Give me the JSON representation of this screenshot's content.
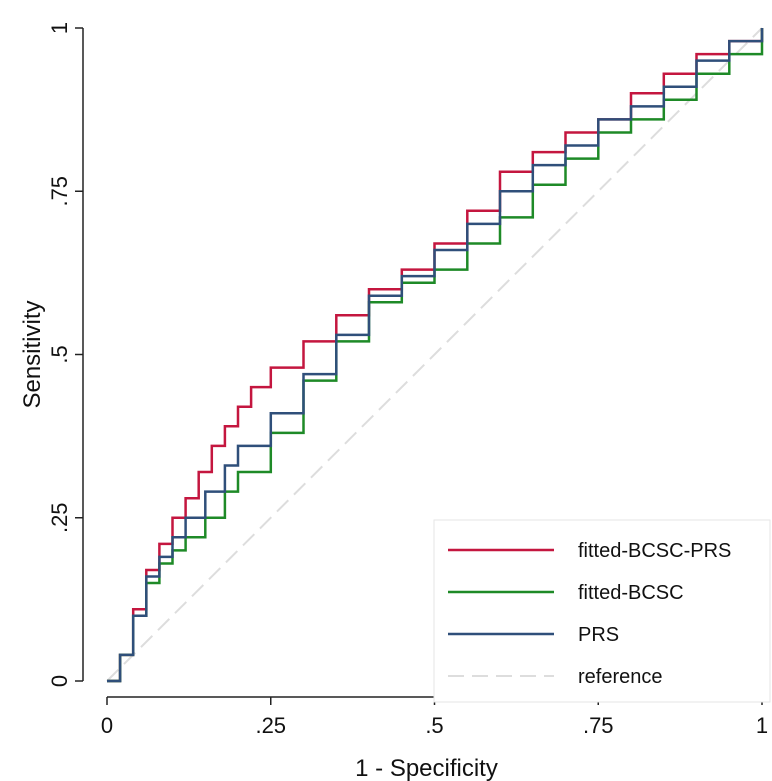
{
  "chart_data": {
    "type": "line",
    "title": "",
    "xlabel": "1 - Specificity",
    "ylabel": "Sensitivity",
    "xlim": [
      0,
      1
    ],
    "ylim": [
      0,
      1
    ],
    "x_ticks": [
      {
        "value": 0,
        "label": "0"
      },
      {
        "value": 0.25,
        "label": ".25"
      },
      {
        "value": 0.5,
        "label": ".5"
      },
      {
        "value": 0.75,
        "label": ".75"
      },
      {
        "value": 1,
        "label": "1"
      }
    ],
    "y_ticks": [
      {
        "value": 0,
        "label": "0"
      },
      {
        "value": 0.25,
        "label": ".25"
      },
      {
        "value": 0.5,
        "label": ".5"
      },
      {
        "value": 0.75,
        "label": ".75"
      },
      {
        "value": 1,
        "label": "1"
      }
    ],
    "grid": false,
    "legend_position": "bottom-right",
    "series": [
      {
        "name": "fitted-BCSC-PRS",
        "color": "#c4163f",
        "dash": "solid",
        "points": [
          [
            0,
            0
          ],
          [
            0.02,
            0.04
          ],
          [
            0.04,
            0.11
          ],
          [
            0.06,
            0.17
          ],
          [
            0.08,
            0.21
          ],
          [
            0.1,
            0.25
          ],
          [
            0.12,
            0.28
          ],
          [
            0.14,
            0.32
          ],
          [
            0.16,
            0.36
          ],
          [
            0.18,
            0.39
          ],
          [
            0.2,
            0.42
          ],
          [
            0.22,
            0.45
          ],
          [
            0.25,
            0.48
          ],
          [
            0.3,
            0.52
          ],
          [
            0.35,
            0.56
          ],
          [
            0.4,
            0.6
          ],
          [
            0.45,
            0.63
          ],
          [
            0.5,
            0.67
          ],
          [
            0.55,
            0.72
          ],
          [
            0.6,
            0.78
          ],
          [
            0.65,
            0.81
          ],
          [
            0.7,
            0.84
          ],
          [
            0.75,
            0.86
          ],
          [
            0.8,
            0.9
          ],
          [
            0.85,
            0.93
          ],
          [
            0.9,
            0.96
          ],
          [
            0.95,
            0.98
          ],
          [
            1,
            1
          ]
        ]
      },
      {
        "name": "fitted-BCSC",
        "color": "#1e8a27",
        "dash": "solid",
        "points": [
          [
            0,
            0
          ],
          [
            0.02,
            0.04
          ],
          [
            0.04,
            0.1
          ],
          [
            0.06,
            0.15
          ],
          [
            0.08,
            0.18
          ],
          [
            0.1,
            0.2
          ],
          [
            0.12,
            0.22
          ],
          [
            0.15,
            0.25
          ],
          [
            0.18,
            0.29
          ],
          [
            0.2,
            0.32
          ],
          [
            0.25,
            0.38
          ],
          [
            0.3,
            0.46
          ],
          [
            0.35,
            0.52
          ],
          [
            0.4,
            0.58
          ],
          [
            0.45,
            0.61
          ],
          [
            0.5,
            0.63
          ],
          [
            0.55,
            0.67
          ],
          [
            0.6,
            0.71
          ],
          [
            0.65,
            0.76
          ],
          [
            0.7,
            0.8
          ],
          [
            0.75,
            0.84
          ],
          [
            0.8,
            0.86
          ],
          [
            0.85,
            0.89
          ],
          [
            0.9,
            0.93
          ],
          [
            0.95,
            0.96
          ],
          [
            1,
            1
          ]
        ]
      },
      {
        "name": "PRS",
        "color": "#2f4f7a",
        "dash": "solid",
        "points": [
          [
            0,
            0
          ],
          [
            0.02,
            0.04
          ],
          [
            0.04,
            0.1
          ],
          [
            0.06,
            0.16
          ],
          [
            0.08,
            0.19
          ],
          [
            0.1,
            0.22
          ],
          [
            0.12,
            0.25
          ],
          [
            0.15,
            0.29
          ],
          [
            0.18,
            0.33
          ],
          [
            0.2,
            0.36
          ],
          [
            0.25,
            0.41
          ],
          [
            0.3,
            0.47
          ],
          [
            0.35,
            0.53
          ],
          [
            0.4,
            0.59
          ],
          [
            0.45,
            0.62
          ],
          [
            0.5,
            0.66
          ],
          [
            0.55,
            0.7
          ],
          [
            0.6,
            0.75
          ],
          [
            0.65,
            0.79
          ],
          [
            0.7,
            0.82
          ],
          [
            0.75,
            0.86
          ],
          [
            0.8,
            0.88
          ],
          [
            0.85,
            0.91
          ],
          [
            0.9,
            0.95
          ],
          [
            0.95,
            0.98
          ],
          [
            1,
            1
          ]
        ]
      },
      {
        "name": "reference",
        "color": "#dddddd",
        "dash": "dashed",
        "points": [
          [
            0,
            0
          ],
          [
            1,
            1
          ]
        ]
      }
    ]
  }
}
